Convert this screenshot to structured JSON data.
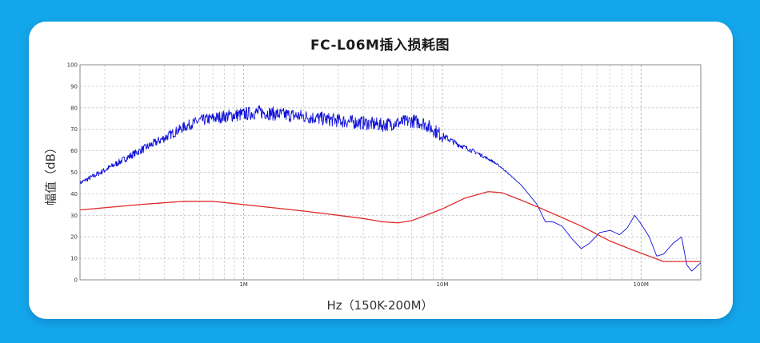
{
  "chart_data": {
    "type": "line",
    "title": "FC-L06M插入损耗图",
    "xlabel": "Hz（150K-200M）",
    "ylabel": "幅值（dB）",
    "x_scale": "log",
    "xlim": [
      150000,
      200000000
    ],
    "ylim": [
      0,
      100
    ],
    "yticks": [
      0,
      10,
      20,
      30,
      40,
      50,
      60,
      70,
      80,
      90,
      100
    ],
    "xticks": [
      {
        "value": 1000000,
        "label": "1M"
      },
      {
        "value": 10000000,
        "label": "10M"
      },
      {
        "value": 100000000,
        "label": "100M"
      }
    ],
    "grid": true,
    "series": [
      {
        "color": "#1010d8",
        "noisy": true,
        "points": [
          [
            150000,
            45
          ],
          [
            200000,
            51
          ],
          [
            250000,
            56
          ],
          [
            300000,
            60
          ],
          [
            400000,
            66
          ],
          [
            500000,
            71
          ],
          [
            600000,
            74
          ],
          [
            800000,
            76
          ],
          [
            1000000,
            77
          ],
          [
            1200000,
            78
          ],
          [
            1500000,
            77
          ],
          [
            2000000,
            76
          ],
          [
            3000000,
            74
          ],
          [
            4000000,
            73
          ],
          [
            5000000,
            72
          ],
          [
            6000000,
            73
          ],
          [
            7000000,
            74
          ],
          [
            8000000,
            73
          ],
          [
            10000000,
            67
          ],
          [
            12000000,
            63
          ],
          [
            15000000,
            59
          ],
          [
            18000000,
            55
          ],
          [
            20000000,
            52
          ],
          [
            25000000,
            44
          ],
          [
            30000000,
            35
          ],
          [
            33000000,
            27
          ],
          [
            36000000,
            27
          ],
          [
            40000000,
            25
          ],
          [
            45000000,
            19
          ],
          [
            50000000,
            14.5
          ],
          [
            55000000,
            17
          ],
          [
            62000000,
            22
          ],
          [
            70000000,
            23
          ],
          [
            78000000,
            21
          ],
          [
            85000000,
            24
          ],
          [
            93000000,
            30
          ],
          [
            100000000,
            26
          ],
          [
            110000000,
            20
          ],
          [
            120000000,
            11
          ],
          [
            130000000,
            12
          ],
          [
            145000000,
            17
          ],
          [
            160000000,
            20
          ],
          [
            170000000,
            7
          ],
          [
            180000000,
            4
          ],
          [
            200000000,
            8
          ]
        ]
      },
      {
        "color": "#e02b2b",
        "noisy": false,
        "points": [
          [
            150000,
            32.5
          ],
          [
            300000,
            35
          ],
          [
            500000,
            36.5
          ],
          [
            700000,
            36.5
          ],
          [
            1000000,
            35
          ],
          [
            2000000,
            32
          ],
          [
            3000000,
            30
          ],
          [
            4000000,
            28.5
          ],
          [
            5000000,
            27
          ],
          [
            6000000,
            26.5
          ],
          [
            7000000,
            27.5
          ],
          [
            8000000,
            29.5
          ],
          [
            10000000,
            33
          ],
          [
            13000000,
            38
          ],
          [
            17000000,
            41
          ],
          [
            20000000,
            40.5
          ],
          [
            25000000,
            37
          ],
          [
            30000000,
            34
          ],
          [
            40000000,
            29
          ],
          [
            50000000,
            25
          ],
          [
            70000000,
            18
          ],
          [
            90000000,
            14
          ],
          [
            110000000,
            11
          ],
          [
            130000000,
            8.5
          ],
          [
            150000000,
            8.5
          ],
          [
            170000000,
            8.5
          ],
          [
            200000000,
            8.5
          ]
        ]
      }
    ]
  }
}
